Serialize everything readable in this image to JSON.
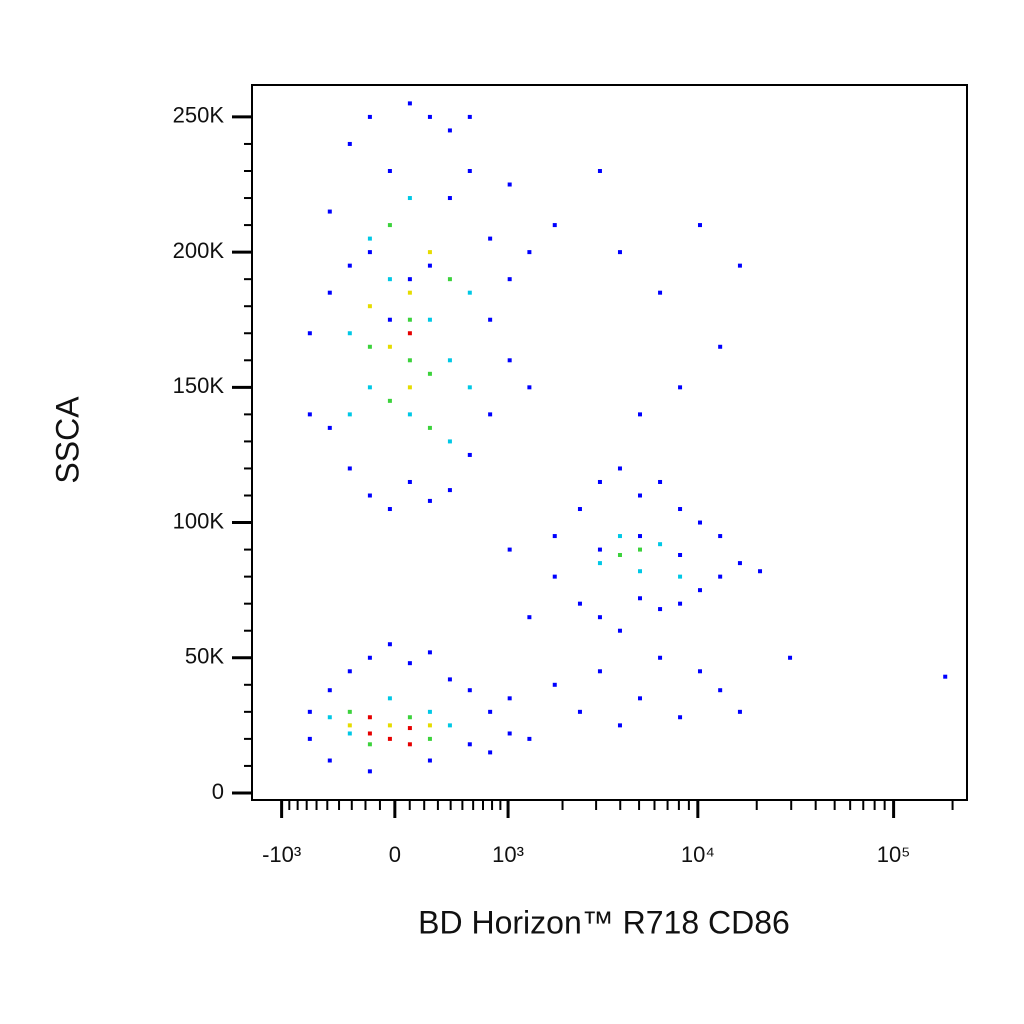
{
  "chart_data": {
    "type": "scatter",
    "xlabel": "BD Horizon™ R718 CD86",
    "ylabel": "SSCA",
    "xscale": "biexponential",
    "xlim": [
      -1470,
      237000
    ],
    "ylim": [
      -2600,
      261800
    ],
    "xticks": [
      {
        "value": -1000,
        "label": "-10³"
      },
      0,
      {
        "value": 1000,
        "label": "10³"
      },
      {
        "value": 10000,
        "label": "10⁴"
      },
      {
        "value": 100000,
        "label": "10⁵"
      }
    ],
    "xminorticks": [
      -900,
      -800,
      -700,
      -600,
      -500,
      -400,
      -300,
      -200,
      -100,
      100,
      200,
      300,
      400,
      500,
      600,
      700,
      800,
      900,
      2000,
      3000,
      4000,
      5000,
      6000,
      7000,
      8000,
      9000,
      20000,
      30000,
      40000,
      50000,
      60000,
      70000,
      80000,
      90000,
      200000
    ],
    "yticks": [
      0,
      {
        "value": 50000,
        "label": "50K"
      },
      {
        "value": 100000,
        "label": "100K"
      },
      {
        "value": 150000,
        "label": "150K"
      },
      {
        "value": 200000,
        "label": "200K"
      },
      {
        "value": 250000,
        "label": "250K"
      }
    ],
    "yminorticks": [
      10000,
      20000,
      30000,
      40000,
      60000,
      70000,
      80000,
      90000,
      110000,
      120000,
      130000,
      140000,
      160000,
      170000,
      180000,
      190000,
      210000,
      220000,
      230000,
      240000
    ],
    "series": [
      {
        "color": "#0000ff",
        "x": [
          -667,
          -478,
          -478,
          -315,
          -315,
          -169,
          -169,
          -33,
          -33,
          101,
          101,
          241,
          241,
          394,
          394,
          568,
          568,
          778,
          778,
          1022,
          1022,
          1323,
          1323,
          1818,
          -667,
          -478,
          -315,
          778,
          1022,
          568,
          -169,
          -33,
          241,
          394,
          101,
          -667,
          -667,
          -478,
          -478,
          -315,
          -169,
          -33,
          101,
          241,
          394,
          568,
          778,
          1022,
          1022,
          778,
          -169,
          241,
          568,
          1323,
          1818,
          1818,
          2471,
          2471,
          3141,
          3141,
          3987,
          3987,
          5055,
          5055,
          6407,
          6407,
          8111,
          8111,
          10258,
          10258,
          13007,
          13007,
          16415,
          20789,
          3141,
          5055,
          8111,
          1818,
          2471,
          3141,
          3987,
          5055,
          6407,
          8111,
          10258,
          13007,
          16415,
          29593,
          183464,
          1323,
          1022,
          3987,
          6407,
          10258,
          13007,
          8111,
          3141,
          16415,
          5055
        ],
        "y": [
          170000,
          215000,
          135000,
          240000,
          120000,
          250000,
          110000,
          230000,
          105000,
          255000,
          115000,
          250000,
          108000,
          245000,
          112000,
          230000,
          125000,
          205000,
          140000,
          190000,
          160000,
          200000,
          150000,
          210000,
          140000,
          185000,
          195000,
          175000,
          225000,
          250000,
          200000,
          175000,
          195000,
          220000,
          190000,
          30000,
          20000,
          38000,
          12000,
          45000,
          50000,
          55000,
          48000,
          52000,
          42000,
          38000,
          30000,
          35000,
          22000,
          15000,
          8000,
          12000,
          18000,
          20000,
          95000,
          80000,
          105000,
          70000,
          115000,
          65000,
          120000,
          60000,
          110000,
          72000,
          115000,
          68000,
          105000,
          70000,
          100000,
          75000,
          95000,
          80000,
          85000,
          82000,
          90000,
          95000,
          88000,
          40000,
          30000,
          45000,
          25000,
          35000,
          50000,
          28000,
          45000,
          38000,
          30000,
          50000,
          43000,
          65000,
          90000,
          200000,
          185000,
          210000,
          165000,
          150000,
          230000,
          195000,
          140000
        ]
      },
      {
        "color": "#00c8e6",
        "x": [
          -315,
          -169,
          -33,
          101,
          241,
          394,
          568,
          -169,
          394,
          101,
          -315,
          568,
          -478,
          -315,
          -33,
          241,
          394,
          3141,
          3987,
          5055,
          6407,
          8111
        ],
        "y": [
          170000,
          150000,
          190000,
          140000,
          175000,
          160000,
          185000,
          205000,
          130000,
          220000,
          140000,
          150000,
          28000,
          22000,
          35000,
          30000,
          25000,
          85000,
          95000,
          82000,
          92000,
          80000
        ]
      },
      {
        "color": "#3cd23c",
        "x": [
          -169,
          -33,
          101,
          241,
          394,
          -33,
          241,
          101,
          -315,
          -169,
          101,
          241,
          3987,
          5055
        ],
        "y": [
          165000,
          145000,
          175000,
          155000,
          190000,
          210000,
          135000,
          160000,
          30000,
          18000,
          28000,
          20000,
          88000,
          90000
        ]
      },
      {
        "color": "#e6dc00",
        "x": [
          -33,
          101,
          241,
          101,
          -169,
          -315,
          -33,
          241
        ],
        "y": [
          165000,
          185000,
          200000,
          150000,
          180000,
          25000,
          25000,
          25000
        ]
      },
      {
        "color": "#e60000",
        "x": [
          -169,
          -33,
          101,
          -169,
          101,
          101
        ],
        "y": [
          22000,
          20000,
          24000,
          28000,
          18000,
          170000
        ]
      }
    ]
  }
}
